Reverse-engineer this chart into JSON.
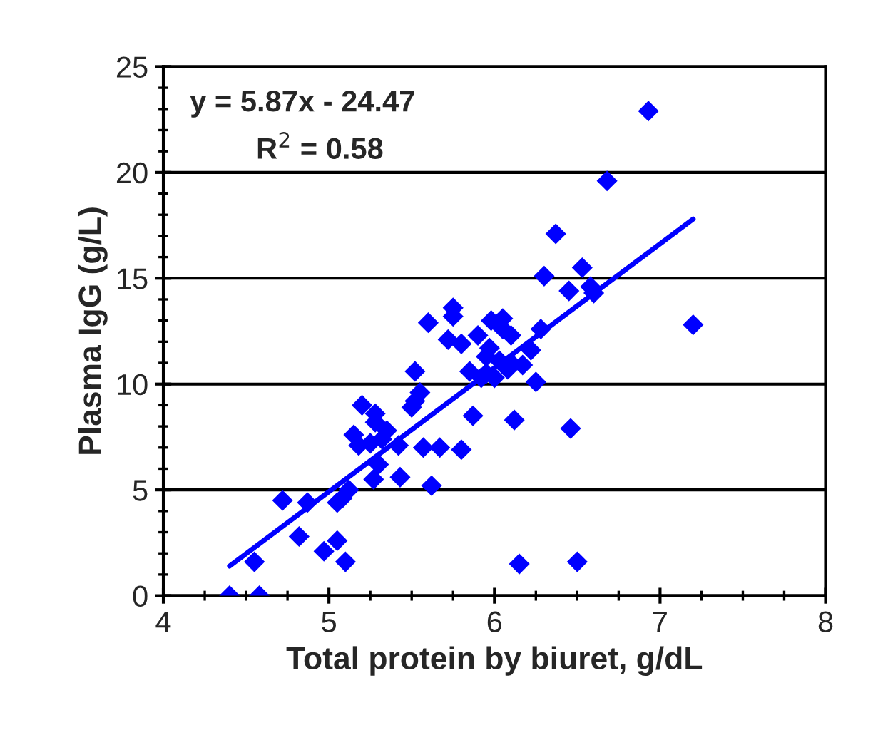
{
  "chart_data": {
    "type": "scatter",
    "xlabel": "Total protein by biuret, g/dL",
    "ylabel": "Plasma IgG (g/L)",
    "annotations": [
      "y = 5.87x - 24.47",
      "R$^{2}$ = 0.58"
    ],
    "xlim": [
      4,
      8
    ],
    "xticks": [
      4,
      5,
      6,
      7,
      8
    ],
    "ylim": [
      0,
      25
    ],
    "yticks": [
      0,
      5,
      10,
      15,
      20,
      25
    ],
    "grid": "y",
    "marker": "diamond",
    "series": [
      {
        "color": "#0000ff",
        "x": [
          4.4,
          4.58,
          4.55,
          4.72,
          4.82,
          4.87,
          4.97,
          5.05,
          5.1,
          5.05,
          5.08,
          5.12,
          5.15,
          5.2,
          5.18,
          5.25,
          5.27,
          5.28,
          5.28,
          5.3,
          5.32,
          5.35,
          5.42,
          5.43,
          5.5,
          5.52,
          5.52,
          5.55,
          5.57,
          5.6,
          5.62,
          5.67,
          5.72,
          5.75,
          5.75,
          5.8,
          5.8,
          5.85,
          5.87,
          5.9,
          5.92,
          5.95,
          5.95,
          5.97,
          5.98,
          6.0,
          6.03,
          6.05,
          6.05,
          6.08,
          6.1,
          6.1,
          6.12,
          6.15,
          6.17,
          6.22,
          6.25,
          6.28,
          6.3,
          6.37,
          6.45,
          6.46,
          6.5,
          6.53,
          6.58,
          6.6,
          6.68,
          6.93,
          7.2
        ],
        "values": [
          0,
          0,
          1.6,
          4.5,
          2.8,
          4.4,
          2.1,
          2.6,
          1.6,
          4.4,
          4.6,
          5.0,
          7.6,
          9.0,
          7.1,
          7.2,
          5.5,
          8.6,
          8.2,
          6.2,
          7.4,
          7.8,
          7.1,
          5.6,
          8.9,
          9.2,
          10.6,
          9.6,
          7.0,
          12.9,
          5.2,
          7.0,
          12.1,
          13.6,
          13.2,
          11.9,
          6.9,
          10.6,
          8.5,
          12.3,
          10.3,
          10.5,
          11.3,
          11.7,
          13.0,
          10.3,
          11.1,
          12.6,
          13.1,
          10.7,
          11.0,
          12.3,
          8.3,
          1.5,
          10.9,
          11.6,
          10.1,
          12.6,
          15.1,
          17.1,
          14.4,
          7.9,
          1.6,
          15.5,
          14.6,
          14.3,
          19.6,
          22.9,
          12.8
        ]
      },
      {
        "type": "line",
        "color": "#0000ff",
        "x": [
          4.4,
          7.2
        ],
        "values": [
          1.4,
          17.8
        ],
        "marker": "none",
        "line_style": "solid"
      }
    ]
  }
}
